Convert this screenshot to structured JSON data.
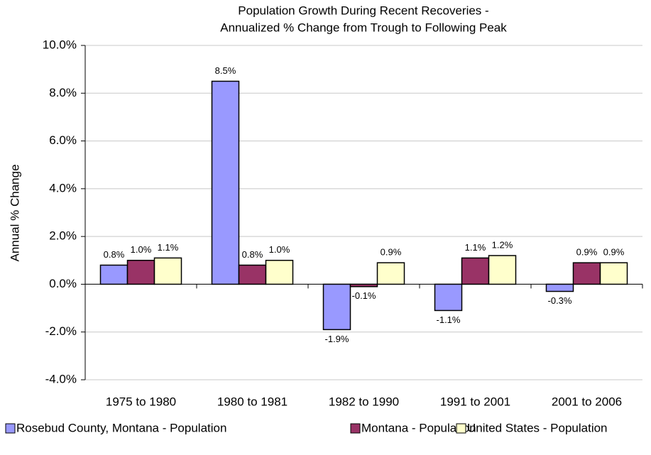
{
  "chart_data": {
    "type": "bar",
    "title": [
      "Population Growth During Recent Recoveries -",
      "Annualized % Change from Trough to Following Peak"
    ],
    "y_label": "Annual % Change",
    "categories": [
      "1975 to 1980",
      "1980 to 1981",
      "1982 to 1990",
      "1991 to 2001",
      "2001 to 2006"
    ],
    "series": [
      {
        "name": "Rosebud County, Montana - Population",
        "color": "#9999ff",
        "values": [
          0.8,
          8.5,
          -1.9,
          -1.1,
          -0.3
        ],
        "value_labels": [
          "0.8%",
          "8.5%",
          "-1.9%",
          "-1.1%",
          "-0.3%"
        ]
      },
      {
        "name": "Montana - Population",
        "color": "#993366",
        "values": [
          1.0,
          0.8,
          -0.1,
          1.1,
          0.9
        ],
        "value_labels": [
          "1.0%",
          "0.8%",
          "-0.1%",
          "1.1%",
          "0.9%"
        ]
      },
      {
        "name": "United States - Population",
        "color": "#ffffcc",
        "values": [
          1.1,
          1.0,
          0.9,
          1.2,
          0.9
        ],
        "value_labels": [
          "1.1%",
          "1.0%",
          "0.9%",
          "1.2%",
          "0.9%"
        ]
      }
    ],
    "ylim": [
      -4,
      10
    ],
    "yticks": [
      {
        "value": -4,
        "label": "-4.0%"
      },
      {
        "value": -2,
        "label": "-2.0%"
      },
      {
        "value": 0,
        "label": "0.0%"
      },
      {
        "value": 2,
        "label": "2.0%"
      },
      {
        "value": 4,
        "label": "4.0%"
      },
      {
        "value": 6,
        "label": "6.0%"
      },
      {
        "value": 8,
        "label": "8.0%"
      },
      {
        "value": 10,
        "label": "10.0%"
      }
    ],
    "grid": true,
    "legend": "bottom"
  }
}
